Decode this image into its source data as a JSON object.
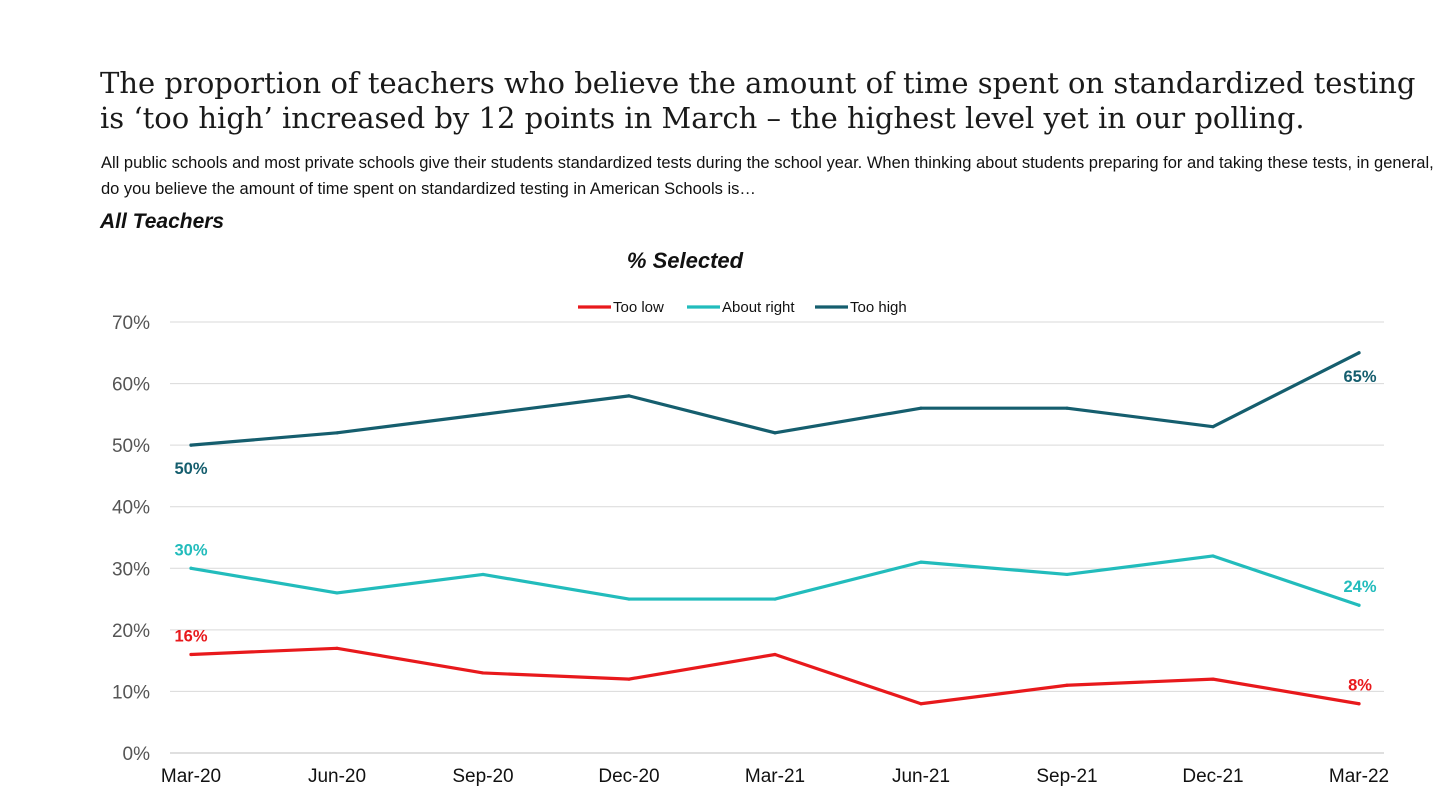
{
  "header": {
    "headline": "The proportion of teachers who believe the amount of time spent on standardized testing is ‘too high’ increased by 12 points in March – the highest level yet in our polling.",
    "question": "All public schools and most private schools give their students standardized tests during the school year. When thinking about students preparing for and taking these tests, in general, do you believe the amount of time spent on standardized testing in American Schools is…",
    "section": "All Teachers"
  },
  "chart_data": {
    "type": "line",
    "title": "% Selected",
    "xlabel": "",
    "ylabel": "",
    "categories": [
      "Mar-20",
      "Jun-20",
      "Sep-20",
      "Dec-20",
      "Mar-21",
      "Jun-21",
      "Sep-21",
      "Dec-21",
      "Mar-22"
    ],
    "ylim": [
      0,
      70
    ],
    "yticks": [
      "0%",
      "10%",
      "20%",
      "30%",
      "40%",
      "50%",
      "60%",
      "70%"
    ],
    "grid": true,
    "legend_position": "top",
    "series": [
      {
        "name": "Too low",
        "color": "#e8191c",
        "values": [
          16,
          17,
          13,
          12,
          16,
          8,
          11,
          12,
          8
        ],
        "labels": [
          {
            "index": 0,
            "text": "16%"
          },
          {
            "index": 8,
            "text": "8%"
          }
        ]
      },
      {
        "name": "About right",
        "color": "#22bcbc",
        "values": [
          30,
          26,
          29,
          25,
          25,
          31,
          29,
          32,
          24
        ],
        "labels": [
          {
            "index": 0,
            "text": "30%"
          },
          {
            "index": 8,
            "text": "24%"
          }
        ]
      },
      {
        "name": "Too high",
        "color": "#155e6e",
        "values": [
          50,
          52,
          55,
          58,
          52,
          56,
          56,
          53,
          65
        ],
        "labels": [
          {
            "index": 0,
            "text": "50%"
          },
          {
            "index": 8,
            "text": "65%"
          }
        ]
      }
    ]
  }
}
